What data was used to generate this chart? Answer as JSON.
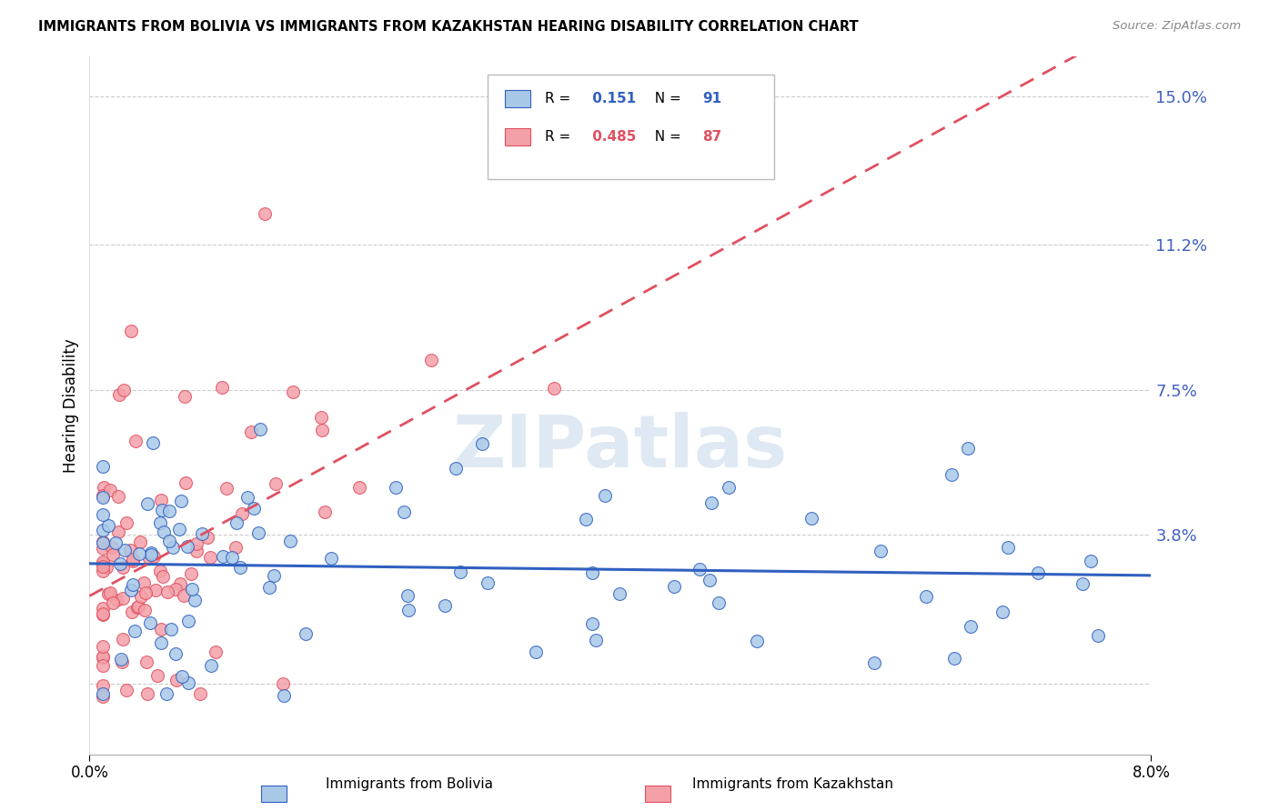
{
  "title": "IMMIGRANTS FROM BOLIVIA VS IMMIGRANTS FROM KAZAKHSTAN HEARING DISABILITY CORRELATION CHART",
  "source": "Source: ZipAtlas.com",
  "ylabel": "Hearing Disability",
  "xlabel_bolivia": "Immigrants from Bolivia",
  "xlabel_kazakhstan": "Immigrants from Kazakhstan",
  "watermark": "ZIPatlas",
  "bolivia_R": 0.151,
  "bolivia_N": 91,
  "kazakhstan_R": 0.485,
  "kazakhstan_N": 87,
  "bolivia_color": "#a8c8e8",
  "kazakhstan_color": "#f4a0a8",
  "bolivia_line_color": "#3060c0",
  "kazakhstan_line_color": "#e05060",
  "x_min": 0.0,
  "x_max": 0.08,
  "y_min": -0.018,
  "y_max": 0.16,
  "ytick_vals": [
    0.0,
    0.038,
    0.075,
    0.112,
    0.15
  ],
  "ytick_labels": [
    "",
    "3.8%",
    "7.5%",
    "11.2%",
    "15.0%"
  ],
  "xtick_vals": [
    0.0,
    0.08
  ],
  "xtick_labels": [
    "0.0%",
    "8.0%"
  ],
  "grid_color": "#cccccc",
  "background_color": "#ffffff",
  "title_color": "#000000",
  "source_color": "#888888",
  "ytick_color": "#4060c0",
  "xtick_color": "#000000"
}
